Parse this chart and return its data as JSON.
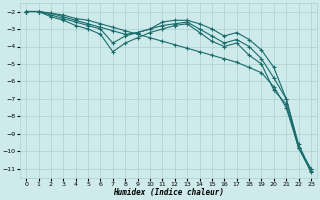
{
  "xlabel": "Humidex (Indice chaleur)",
  "background_color": "#ceeaea",
  "grid_color": "#aacfcf",
  "line_color": "#1a6b6b",
  "xlim": [
    -0.5,
    23.5
  ],
  "ylim": [
    -11.5,
    -1.5
  ],
  "yticks": [
    -11,
    -10,
    -9,
    -8,
    -7,
    -6,
    -5,
    -4,
    -3,
    -2
  ],
  "xticks": [
    0,
    1,
    2,
    3,
    4,
    5,
    6,
    7,
    8,
    9,
    10,
    11,
    12,
    13,
    14,
    15,
    16,
    17,
    18,
    19,
    20,
    21,
    22,
    23
  ],
  "series": [
    {
      "x": [
        0,
        1,
        2,
        3,
        4,
        5,
        6,
        7,
        8,
        9,
        10,
        11,
        12,
        13,
        14,
        15,
        16,
        17,
        18,
        19,
        20,
        21,
        22,
        23
      ],
      "y": [
        -2.0,
        -2.0,
        -2.1,
        -2.2,
        -2.4,
        -2.5,
        -2.7,
        -2.9,
        -3.1,
        -3.3,
        -3.5,
        -3.7,
        -3.9,
        -4.1,
        -4.3,
        -4.5,
        -4.7,
        -4.9,
        -5.2,
        -5.5,
        -6.3,
        -7.5,
        -9.8,
        -11.0
      ]
    },
    {
      "x": [
        0,
        1,
        2,
        3,
        4,
        5,
        6,
        7,
        8,
        9,
        10,
        11,
        12,
        13,
        14,
        15,
        16,
        17,
        18,
        19,
        20,
        21,
        22,
        23
      ],
      "y": [
        -2.0,
        -2.0,
        -2.1,
        -2.3,
        -2.5,
        -2.7,
        -2.9,
        -3.1,
        -3.3,
        -3.2,
        -3.0,
        -2.6,
        -2.5,
        -2.5,
        -2.7,
        -3.0,
        -3.4,
        -3.2,
        -3.6,
        -4.2,
        -5.2,
        -7.0,
        -9.8,
        -11.0
      ]
    },
    {
      "x": [
        0,
        1,
        2,
        3,
        4,
        5,
        6,
        7,
        8,
        9,
        10,
        11,
        12,
        13,
        14,
        15,
        16,
        17,
        18,
        19,
        20,
        21,
        22,
        23
      ],
      "y": [
        -2.0,
        -2.0,
        -2.2,
        -2.4,
        -2.6,
        -2.8,
        -3.0,
        -3.8,
        -3.4,
        -3.2,
        -3.0,
        -2.8,
        -2.7,
        -2.6,
        -3.0,
        -3.4,
        -3.8,
        -3.6,
        -4.0,
        -4.7,
        -5.8,
        -7.0,
        -9.6,
        -11.1
      ]
    },
    {
      "x": [
        0,
        1,
        2,
        3,
        4,
        5,
        6,
        7,
        8,
        9,
        10,
        11,
        12,
        13,
        14,
        15,
        16,
        17,
        18,
        19,
        20,
        21,
        22,
        23
      ],
      "y": [
        -2.0,
        -2.0,
        -2.3,
        -2.5,
        -2.8,
        -3.0,
        -3.3,
        -4.3,
        -3.8,
        -3.5,
        -3.2,
        -3.0,
        -2.8,
        -2.7,
        -3.2,
        -3.7,
        -4.0,
        -3.8,
        -4.5,
        -5.0,
        -6.5,
        -7.3,
        -9.8,
        -11.2
      ]
    }
  ]
}
